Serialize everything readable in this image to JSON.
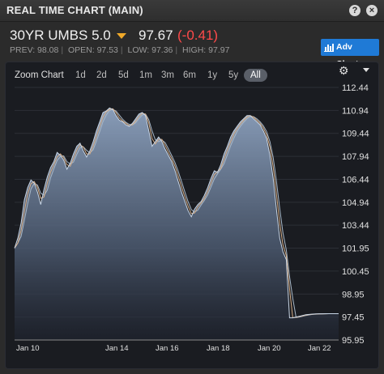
{
  "header": {
    "title": "REAL TIME CHART (MAIN)"
  },
  "icons": {
    "help": "help-icon",
    "close": "close-icon",
    "gear": "gear-icon",
    "chart": "bar-chart-icon"
  },
  "instrument": {
    "name": "30YR UMBS 5.0",
    "price": "97.67",
    "change": "(-0.41)",
    "prev_label": "PREV:",
    "prev": "98.08",
    "open_label": "OPEN:",
    "open": "97.53",
    "low_label": "LOW:",
    "low": "97.36",
    "high_label": "HIGH:",
    "high": "97.97"
  },
  "toolbar": {
    "adv_charts": "Adv Charts",
    "zoom_label": "Zoom Chart",
    "zoom_options": [
      "1d",
      "2d",
      "5d",
      "1m",
      "3m",
      "6m",
      "1y",
      "5y",
      "All"
    ],
    "zoom_selected": "All"
  },
  "colors": {
    "accent": "#f0a929",
    "down": "#ff4a4a",
    "button": "#1f7ad6",
    "area": "#7e94b3",
    "ma1": "#d8b08a",
    "ma2": "#a8b8c8"
  },
  "chart_data": {
    "type": "area",
    "x_tick_labels": [
      "Jan 10",
      "Jan 14",
      "Jan 16",
      "Jan 18",
      "Jan 20",
      "Jan 22"
    ],
    "y_tick_labels": [
      "112.44",
      "110.94",
      "109.44",
      "107.94",
      "106.44",
      "104.94",
      "103.44",
      "101.95",
      "100.45",
      "98.95",
      "97.45",
      "95.95"
    ],
    "ylim": [
      95.95,
      112.44
    ],
    "x": [
      0,
      1,
      2,
      3,
      4,
      5,
      6,
      7,
      8,
      9,
      10,
      11,
      12,
      13,
      14,
      15,
      16,
      17,
      18,
      19,
      20,
      21,
      22,
      23,
      24,
      25,
      26,
      27,
      28,
      29,
      30,
      31,
      32,
      33,
      34,
      35,
      36,
      37,
      38,
      39,
      40,
      41,
      42,
      43,
      44,
      45,
      46,
      47,
      48,
      49,
      50,
      51,
      52,
      53,
      54,
      55,
      56,
      57,
      58,
      59,
      60,
      61,
      62,
      63,
      64,
      65,
      66,
      67,
      68,
      69,
      70,
      71,
      72,
      73,
      74,
      75,
      76,
      77,
      78,
      79,
      80,
      81,
      82,
      83,
      84,
      85,
      86,
      87,
      88,
      89,
      90,
      91,
      92,
      93,
      94,
      95,
      96,
      97,
      98,
      99
    ],
    "series": [
      {
        "values": [
          101.95,
          102.6,
          103.6,
          105.1,
          105.9,
          106.4,
          106.2,
          105.6,
          104.8,
          105.8,
          106.6,
          107.2,
          107.6,
          108.2,
          108.0,
          107.7,
          107.1,
          107.5,
          108.1,
          108.6,
          108.8,
          108.3,
          107.9,
          108.3,
          108.9,
          109.6,
          110.2,
          110.8,
          110.9,
          111.1,
          111.0,
          110.6,
          110.3,
          110.2,
          110.0,
          109.9,
          110.1,
          110.4,
          110.7,
          110.8,
          110.6,
          109.6,
          108.6,
          108.9,
          109.2,
          108.9,
          108.4,
          108.0,
          107.6,
          107.0,
          106.3,
          105.6,
          105.0,
          104.4,
          104.0,
          104.5,
          104.8,
          105.0,
          105.4,
          105.9,
          106.5,
          107.0,
          106.9,
          107.4,
          108.1,
          108.6,
          109.2,
          109.6,
          109.9,
          110.2,
          110.4,
          110.6,
          110.6,
          110.4,
          110.2,
          110.0,
          109.6,
          109.1,
          108.0,
          106.5,
          104.5,
          102.6,
          101.7,
          101.2,
          97.4,
          97.4,
          97.45,
          97.5,
          97.55,
          97.6,
          97.62,
          97.64,
          97.65,
          97.66,
          97.66,
          97.67,
          97.67,
          97.67,
          97.67,
          97.67
        ]
      }
    ]
  }
}
